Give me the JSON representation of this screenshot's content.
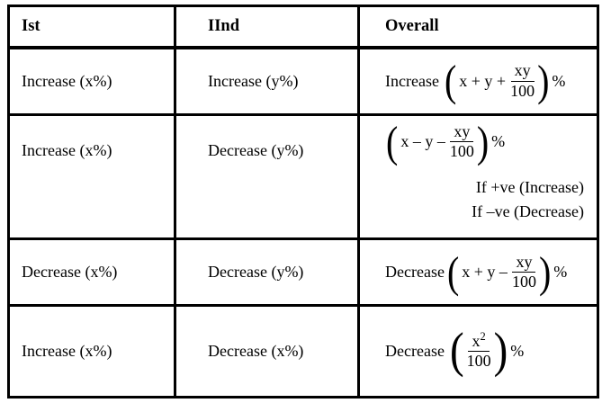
{
  "table": {
    "headers": [
      "Ist",
      "IInd",
      "Overall"
    ],
    "symbols": {
      "open_paren": "(",
      "close_paren": ")"
    },
    "rows": [
      {
        "first": "Increase (x%)",
        "second": "Increase (y%)",
        "overall": {
          "prefix": "Increase",
          "expr": "x + y +",
          "frac_num": "xy",
          "frac_den": "100",
          "suffix": "%"
        }
      },
      {
        "first": "Increase (x%)",
        "second": "Decrease (y%)",
        "overall": {
          "expr": "x – y –",
          "frac_num": "xy",
          "frac_den": "100",
          "suffix": "%",
          "notes": [
            "If +ve (Increase)",
            "If –ve (Decrease)"
          ]
        }
      },
      {
        "first": "Decrease (x%)",
        "second": "Decrease (y%)",
        "overall": {
          "prefix": "Decrease",
          "expr": "x + y –",
          "frac_num": "xy",
          "frac_den": "100",
          "suffix": "%"
        }
      },
      {
        "first": "Increase (x%)",
        "second": "Decrease (x%)",
        "overall": {
          "prefix": "Decrease",
          "frac_num_base": "x",
          "frac_num_sup": "2",
          "frac_den": "100",
          "suffix": "%"
        }
      }
    ]
  }
}
